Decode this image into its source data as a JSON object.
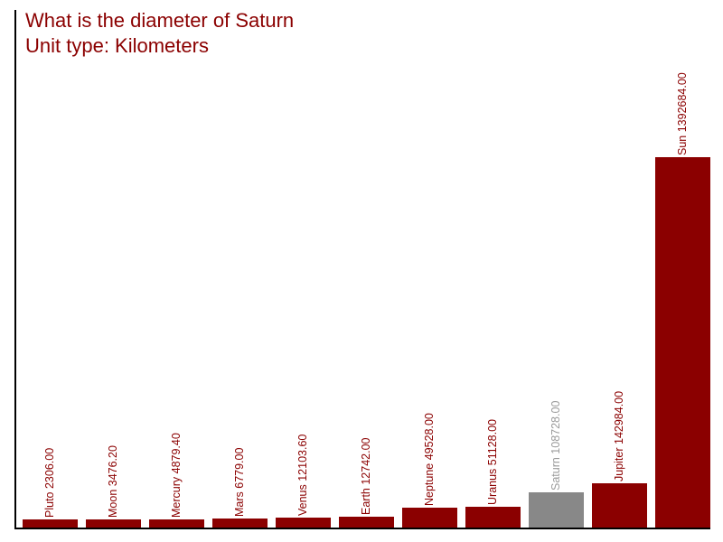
{
  "title": "What is the diameter of Saturn",
  "subtitle": "Unit type: Kilometers",
  "colors": {
    "bar": "#8b0000",
    "label": "#8b0000",
    "highlight_bar": "#888888",
    "highlight_label": "#9a9a9a",
    "axis": "#000000",
    "title": "#8b0000"
  },
  "chart_data": {
    "type": "bar",
    "title": "What is the diameter of Saturn",
    "subtitle": "Unit type: Kilometers",
    "categories": [
      "Pluto",
      "Moon",
      "Mercury",
      "Mars",
      "Venus",
      "Earth",
      "Neptune",
      "Uranus",
      "Saturn",
      "Jupiter",
      "Sun"
    ],
    "values": [
      2306.0,
      3476.2,
      4879.4,
      6779.0,
      12103.6,
      12742.0,
      49528.0,
      51128.0,
      108728.0,
      142984.0,
      1392684.0
    ],
    "labels": [
      "Pluto 2306.00",
      "Moon 3476.20",
      "Mercury 4879.40",
      "Mars 6779.00",
      "Venus 12103.60",
      "Earth 12742.00",
      "Neptune 49528.00",
      "Uranus 51128.00",
      "Saturn 108728.00",
      "Jupiter 142984.00",
      "Sun 1392684.00"
    ],
    "highlighted_category": "Saturn",
    "unit": "Kilometers",
    "ylim": [
      0,
      1392684
    ],
    "grid": false,
    "legend": false
  }
}
